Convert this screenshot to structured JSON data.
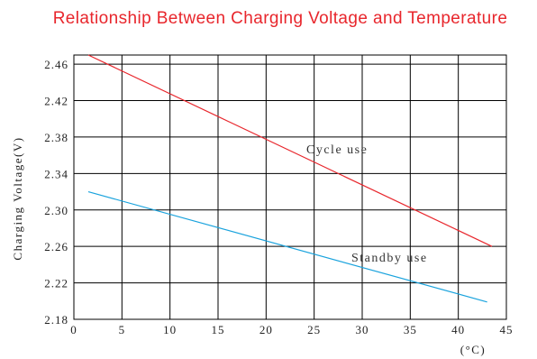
{
  "chart_data": {
    "type": "line",
    "title": "Relationship Between Charging Voltage and Temperature",
    "xlabel": "(°C)",
    "ylabel": "Charging Voltage(V)",
    "xlim": [
      0,
      45
    ],
    "ylim": [
      2.18,
      2.47
    ],
    "x_ticks": [
      "0",
      "5",
      "10",
      "15",
      "20",
      "25",
      "30",
      "35",
      "40",
      "45"
    ],
    "y_ticks": [
      "2.18",
      "2.22",
      "2.26",
      "2.30",
      "2.34",
      "2.38",
      "2.42",
      "2.46"
    ],
    "grid": true,
    "series": [
      {
        "name": "Cycle use",
        "color": "#e8262c",
        "x": [
          1.5,
          43.5
        ],
        "y": [
          2.47,
          2.26
        ]
      },
      {
        "name": "Standby use",
        "color": "#1aa3dd",
        "x": [
          1.5,
          43
        ],
        "y": [
          2.32,
          2.199
        ]
      }
    ]
  }
}
